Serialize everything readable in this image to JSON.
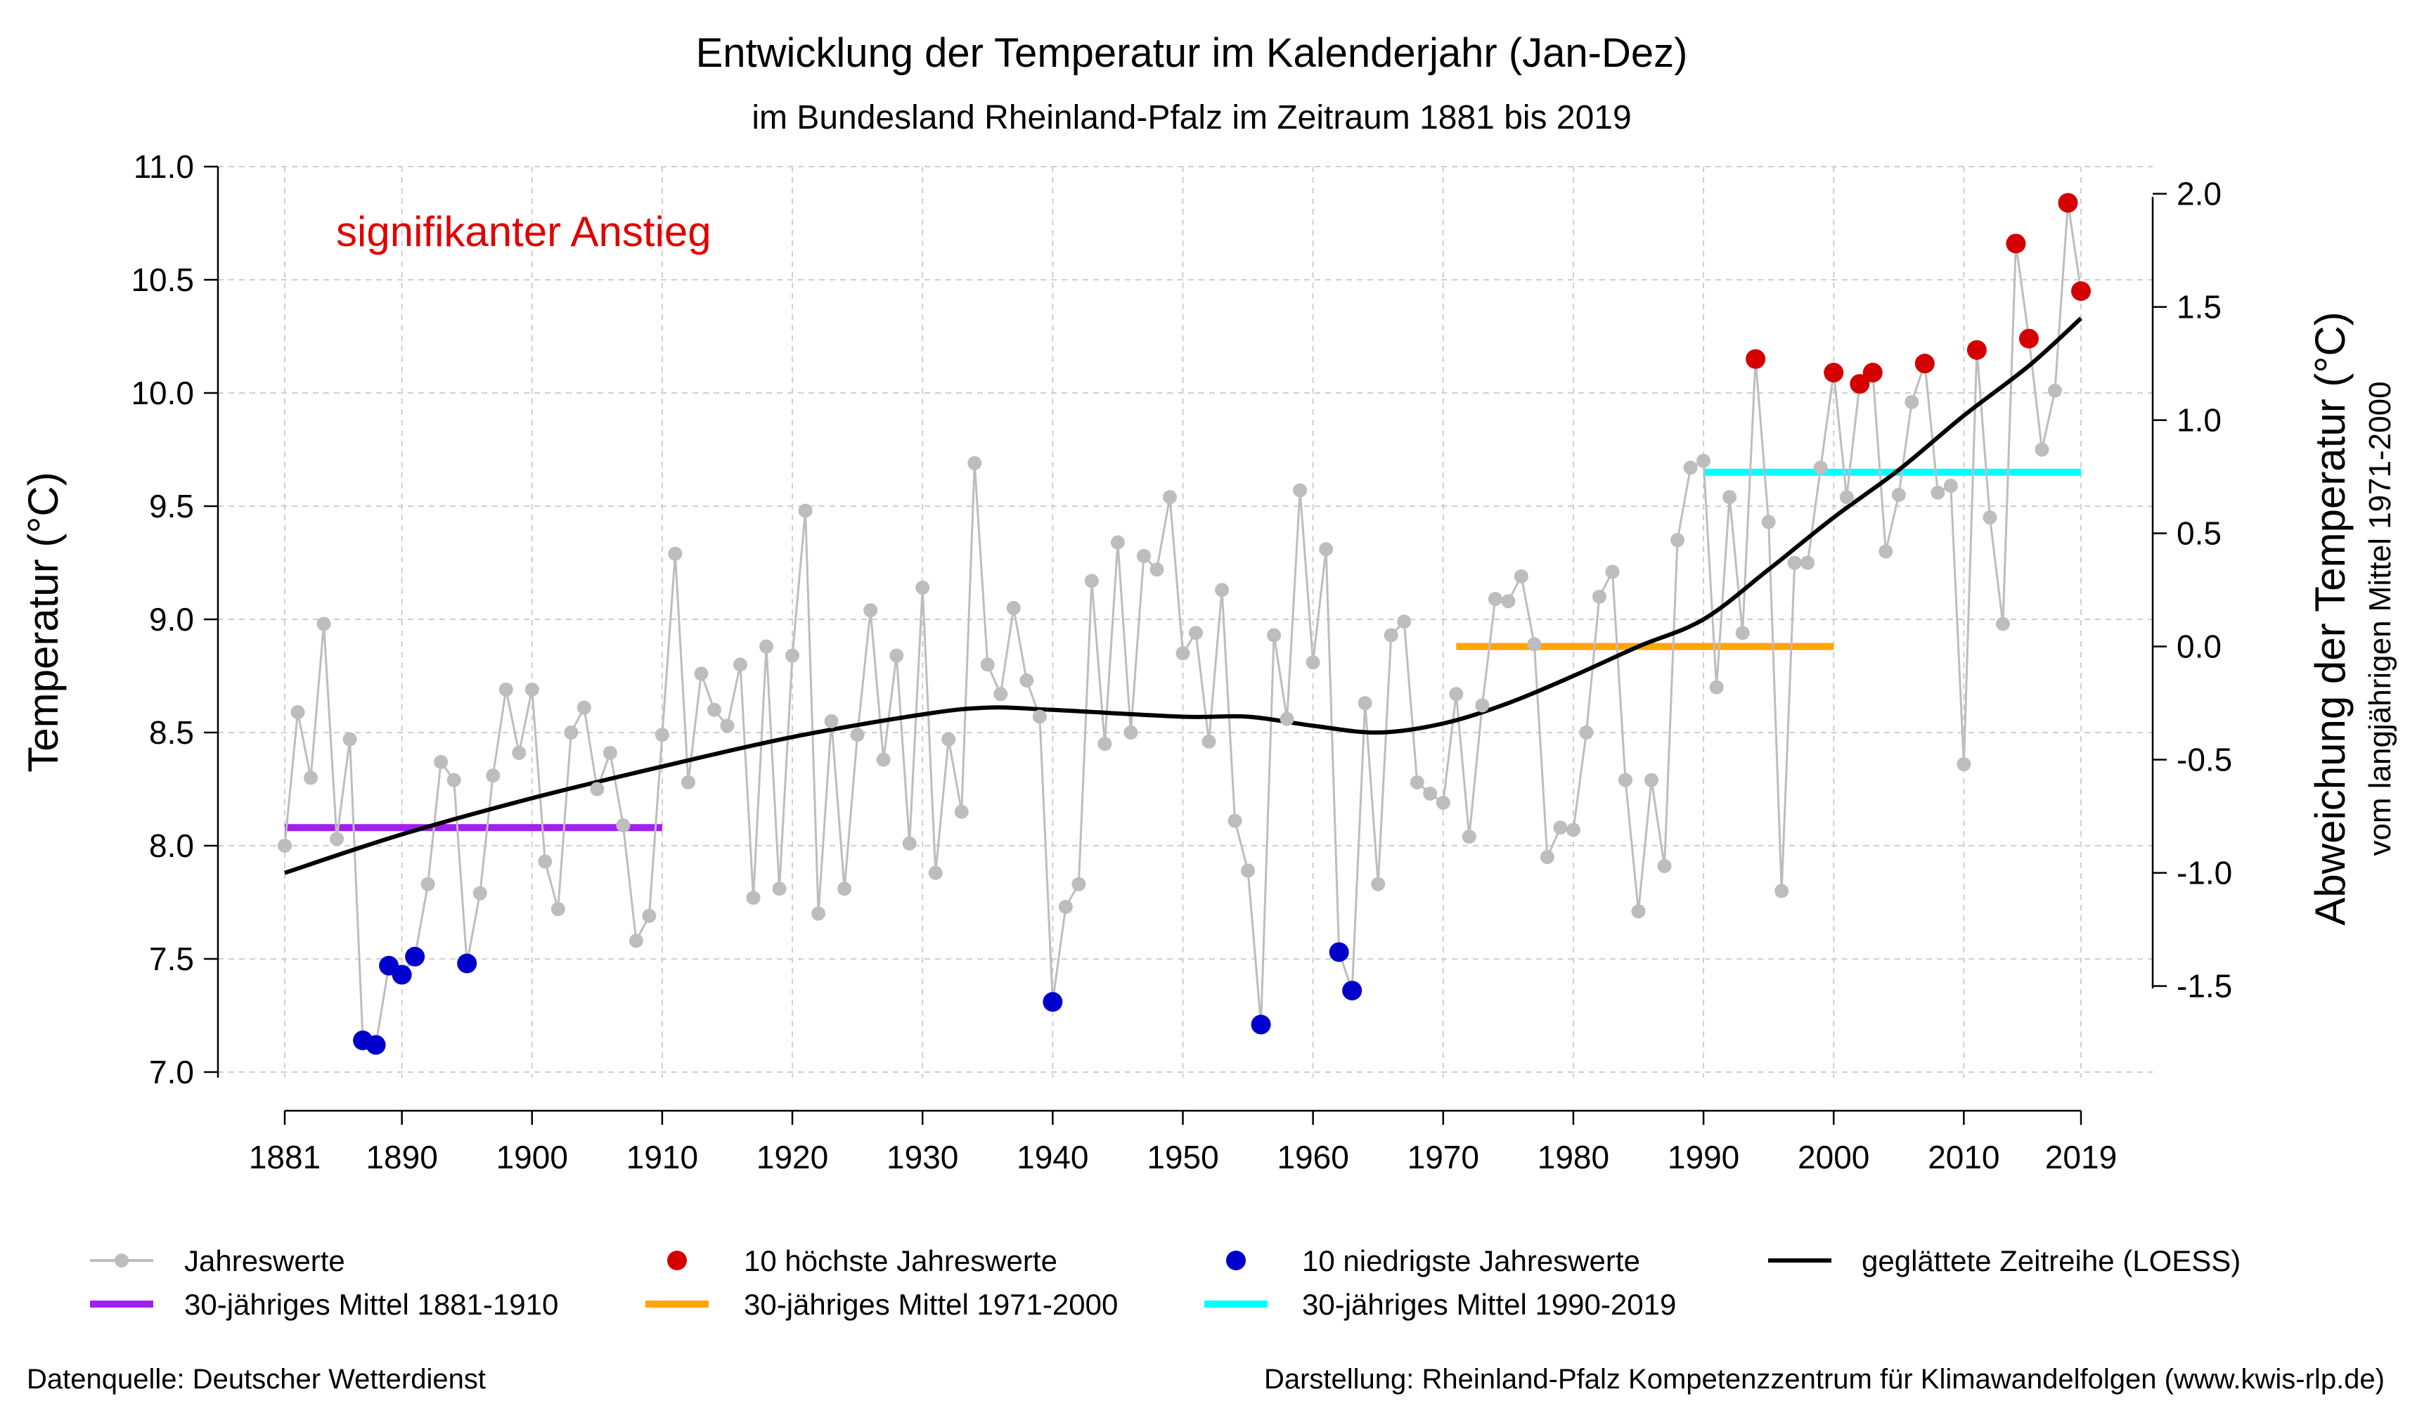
{
  "chart_data": {
    "type": "line",
    "title": "Entwicklung der Temperatur im Kalenderjahr (Jan-Dez)",
    "subtitle": "im Bundesland Rheinland-Pfalz im Zeitraum 1881 bis 2019",
    "ylabel": "Temperatur (°C)",
    "y2label": "Abweichung der Temperatur (°C)",
    "y2label_sub": "vom langjährigen Mittel 1971-2000",
    "annotation": "signifikanter Anstieg",
    "xlim": [
      1881,
      2019
    ],
    "ylim": [
      7.0,
      11.0
    ],
    "y2lim": [
      -1.5,
      2.0
    ],
    "reference_mean_1971_2000": 8.88,
    "x_ticks": [
      "1881",
      "1890",
      "1900",
      "1910",
      "1920",
      "1930",
      "1940",
      "1950",
      "1960",
      "1970",
      "1980",
      "1990",
      "2000",
      "2010",
      "2019"
    ],
    "y_ticks": [
      "7.0",
      "7.5",
      "8.0",
      "8.5",
      "9.0",
      "9.5",
      "10.0",
      "10.5",
      "11.0"
    ],
    "y2_ticks": [
      "-1.5",
      "-1.0",
      "-0.5",
      "0.0",
      "0.5",
      "1.0",
      "1.5",
      "2.0"
    ],
    "grid": true,
    "series": [
      {
        "name": "Jahreswerte",
        "color": "#bdbdbd",
        "x_start": 1881,
        "values": [
          8.0,
          8.59,
          8.3,
          8.98,
          8.03,
          8.47,
          7.14,
          7.12,
          7.47,
          7.43,
          7.51,
          7.83,
          8.37,
          8.29,
          7.48,
          7.79,
          8.31,
          8.69,
          8.41,
          8.69,
          7.93,
          7.72,
          8.5,
          8.61,
          8.25,
          8.41,
          8.09,
          7.58,
          7.69,
          8.49,
          9.29,
          8.28,
          8.76,
          8.6,
          8.53,
          8.8,
          7.77,
          8.88,
          7.81,
          8.84,
          9.48,
          7.7,
          8.55,
          7.81,
          8.49,
          9.04,
          8.38,
          8.84,
          8.01,
          9.14,
          7.88,
          8.47,
          8.15,
          9.69,
          8.8,
          8.67,
          9.05,
          8.73,
          8.57,
          7.31,
          7.73,
          7.83,
          9.17,
          8.45,
          9.34,
          8.5,
          9.28,
          9.22,
          9.54,
          8.85,
          8.94,
          8.46,
          9.13,
          8.11,
          7.89,
          7.21,
          8.93,
          8.56,
          9.57,
          8.81,
          9.31,
          7.53,
          7.36,
          8.63,
          7.83,
          8.93,
          8.99,
          8.28,
          8.23,
          8.19,
          8.67,
          8.04,
          8.62,
          9.09,
          9.08,
          9.19,
          8.89,
          7.95,
          8.08,
          8.07,
          8.5,
          9.1,
          9.21,
          8.29,
          7.71,
          8.29,
          7.91,
          9.35,
          9.67,
          9.7,
          8.7,
          9.54,
          8.94,
          10.15,
          9.43,
          7.8,
          9.25,
          9.25,
          9.67,
          10.09,
          9.54,
          10.04,
          10.09,
          9.3,
          9.55,
          9.96,
          10.13,
          9.56,
          9.59,
          8.36,
          10.19,
          9.45,
          8.98,
          10.66,
          10.24,
          9.75,
          10.01,
          10.84,
          10.45
        ]
      },
      {
        "name": "10 höchste Jahreswerte",
        "color": "#d40000",
        "x": [
          1994,
          2000,
          2002,
          2003,
          2007,
          2011,
          2014,
          2015,
          2018,
          2019
        ],
        "values": [
          10.15,
          10.09,
          10.04,
          10.09,
          10.13,
          10.19,
          10.66,
          10.24,
          10.84,
          10.45
        ]
      },
      {
        "name": "10 niedrigste Jahreswerte",
        "color": "#0000cc",
        "x": [
          1887,
          1888,
          1889,
          1890,
          1891,
          1895,
          1940,
          1956,
          1962,
          1963
        ],
        "values": [
          7.14,
          7.12,
          7.47,
          7.43,
          7.51,
          7.48,
          7.31,
          7.21,
          7.53,
          7.36
        ]
      },
      {
        "name": "geglättete Zeitreihe (LOESS)",
        "color": "#000000",
        "x": [
          1881,
          1890,
          1900,
          1910,
          1920,
          1930,
          1935,
          1940,
          1950,
          1955,
          1960,
          1965,
          1970,
          1975,
          1980,
          1985,
          1990,
          1995,
          2000,
          2005,
          2010,
          2015,
          2019
        ],
        "values": [
          7.88,
          8.05,
          8.21,
          8.35,
          8.48,
          8.58,
          8.61,
          8.6,
          8.57,
          8.57,
          8.53,
          8.5,
          8.54,
          8.63,
          8.75,
          8.88,
          9.0,
          9.22,
          9.45,
          9.66,
          9.9,
          10.12,
          10.33
        ]
      },
      {
        "name": "30-jähriges Mittel 1881-1910",
        "color": "#a020f0",
        "x": [
          1881,
          1910
        ],
        "values": [
          8.08,
          8.08
        ]
      },
      {
        "name": "30-jähriges Mittel 1971-2000",
        "color": "#ffa500",
        "x": [
          1971,
          2000
        ],
        "values": [
          8.88,
          8.88
        ]
      },
      {
        "name": "30-jähriges Mittel 1990-2019",
        "color": "#00ffff",
        "x": [
          1990,
          2019
        ],
        "values": [
          9.65,
          9.65
        ]
      }
    ],
    "legend_position": "bottom"
  },
  "legend": {
    "jahreswerte": "Jahreswerte",
    "hoechste": "10 höchste Jahreswerte",
    "niedrigste": "10 niedrigste Jahreswerte",
    "loess": "geglättete Zeitreihe (LOESS)",
    "mittel1": "30-jähriges Mittel 1881-1910",
    "mittel2": "30-jähriges Mittel 1971-2000",
    "mittel3": "30-jähriges Mittel 1990-2019"
  },
  "footer": {
    "source": "Datenquelle: Deutscher Wetterdienst",
    "credit": "Darstellung: Rheinland-Pfalz Kompetenzzentrum für Klimawandelfolgen (www.kwis-rlp.de)"
  }
}
